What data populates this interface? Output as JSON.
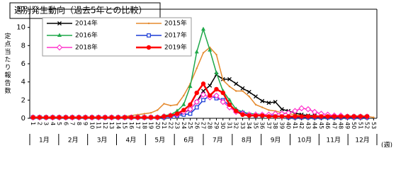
{
  "chart_data": {
    "type": "line",
    "title": "週別発生動向（過去5年との比較）",
    "y_label": "定点当たり報告数",
    "x_label": "(週)",
    "x": [
      1,
      2,
      3,
      4,
      5,
      6,
      7,
      8,
      9,
      10,
      11,
      12,
      13,
      14,
      15,
      16,
      17,
      18,
      19,
      20,
      21,
      22,
      23,
      24,
      25,
      26,
      27,
      28,
      29,
      30,
      31,
      32,
      33,
      34,
      35,
      36,
      37,
      38,
      39,
      40,
      41,
      42,
      43,
      44,
      45,
      46,
      47,
      48,
      49,
      50,
      51,
      52,
      53
    ],
    "xlim": [
      0.5,
      53.5
    ],
    "months": [
      "1月",
      "2月",
      "3月",
      "4月",
      "5月",
      "6月",
      "7月",
      "8月",
      "9月",
      "10月",
      "11月",
      "12月"
    ],
    "ylim": [
      0,
      12
    ],
    "yticks": [
      0,
      2,
      4,
      6,
      8,
      10,
      12
    ],
    "grid": false,
    "series": [
      {
        "name": "2014年",
        "color": "#000000",
        "marker": "cross",
        "values": [
          0.1,
          0.1,
          0.1,
          0.1,
          0.1,
          0.1,
          0.1,
          0.1,
          0.1,
          0.1,
          0.1,
          0.1,
          0.1,
          0.1,
          0.1,
          0.1,
          0.1,
          0.1,
          0.1,
          0.1,
          0.2,
          0.3,
          0.4,
          0.6,
          1.0,
          1.8,
          3.0,
          3.6,
          4.8,
          4.3,
          4.3,
          3.8,
          3.3,
          2.9,
          2.4,
          1.9,
          1.7,
          1.8,
          1.0,
          0.8,
          0.6,
          0.4,
          0.3,
          0.3,
          0.2,
          0.2,
          0.2,
          0.2,
          0.2,
          0.2,
          0.2,
          0.2,
          null
        ]
      },
      {
        "name": "2015年",
        "color": "#e58a2e",
        "marker": "dot",
        "values": [
          0.1,
          0.1,
          0.1,
          0.1,
          0.1,
          0.1,
          0.1,
          0.1,
          0.1,
          0.1,
          0.1,
          0.1,
          0.1,
          0.1,
          0.2,
          0.3,
          0.4,
          0.5,
          0.6,
          0.9,
          1.6,
          1.4,
          1.5,
          2.5,
          3.8,
          5.5,
          7.2,
          7.8,
          7.0,
          4.2,
          3.5,
          3.0,
          3.0,
          2.4,
          1.5,
          1.2,
          0.9,
          0.8,
          0.6,
          0.5,
          0.4,
          0.3,
          0.2,
          0.2,
          0.2,
          0.2,
          0.2,
          0.2,
          0.2,
          0.2,
          0.2,
          0.2,
          0.1
        ]
      },
      {
        "name": "2016年",
        "color": "#1fa84a",
        "marker": "triangle",
        "values": [
          0.1,
          0.1,
          0.1,
          0.1,
          0.1,
          0.1,
          0.1,
          0.1,
          0.1,
          0.1,
          0.1,
          0.1,
          0.1,
          0.1,
          0.1,
          0.1,
          0.1,
          0.1,
          0.1,
          0.1,
          0.3,
          0.4,
          0.8,
          1.5,
          3.5,
          7.3,
          9.8,
          7.5,
          5.0,
          3.0,
          2.0,
          1.0,
          0.7,
          0.5,
          0.5,
          0.4,
          0.3,
          0.2,
          0.2,
          0.2,
          0.2,
          0.2,
          0.2,
          0.2,
          0.2,
          0.2,
          0.2,
          0.2,
          0.2,
          0.2,
          0.2,
          0.2,
          null
        ]
      },
      {
        "name": "2017年",
        "color": "#1a3bd6",
        "marker": "square",
        "values": [
          0.1,
          0.1,
          0.1,
          0.1,
          0.1,
          0.1,
          0.1,
          0.1,
          0.1,
          0.1,
          0.1,
          0.1,
          0.1,
          0.1,
          0.1,
          0.1,
          0.1,
          0.1,
          0.1,
          0.1,
          0.1,
          0.2,
          0.3,
          0.4,
          0.5,
          1.2,
          2.0,
          2.5,
          2.2,
          2.0,
          1.4,
          0.8,
          0.6,
          0.4,
          0.3,
          0.3,
          0.3,
          0.3,
          0.2,
          0.1,
          0.1,
          0.1,
          0.1,
          0.1,
          0.1,
          0.1,
          0.1,
          0.1,
          0.1,
          0.1,
          0.1,
          0.1,
          null
        ]
      },
      {
        "name": "2018年",
        "color": "#ff33cc",
        "marker": "diamond",
        "values": [
          0.1,
          0.1,
          0.1,
          0.1,
          0.1,
          0.1,
          0.1,
          0.1,
          0.1,
          0.1,
          0.1,
          0.1,
          0.1,
          0.1,
          0.1,
          0.1,
          0.1,
          0.1,
          0.1,
          0.1,
          0.2,
          0.3,
          0.4,
          0.7,
          1.0,
          1.8,
          2.6,
          2.3,
          2.5,
          1.8,
          1.2,
          0.7,
          0.5,
          0.4,
          0.4,
          0.4,
          0.4,
          0.5,
          0.5,
          0.6,
          0.8,
          1.1,
          1.0,
          0.7,
          0.5,
          0.4,
          0.3,
          0.3,
          0.2,
          0.2,
          0.2,
          0.2,
          null
        ]
      },
      {
        "name": "2019年",
        "color": "#ff0000",
        "marker": "circle",
        "values": [
          0.1,
          0.1,
          0.1,
          0.1,
          0.1,
          0.1,
          0.1,
          0.1,
          0.1,
          0.1,
          0.1,
          0.1,
          0.1,
          0.1,
          0.1,
          0.1,
          0.1,
          0.1,
          0.1,
          0.1,
          0.2,
          0.3,
          0.5,
          0.9,
          1.5,
          2.8,
          3.8,
          2.5,
          3.2,
          2.8,
          1.5,
          0.8,
          0.4,
          0.3,
          0.3,
          0.3,
          0.2,
          0.2,
          0.2,
          0.2,
          0.2,
          0.2,
          0.2,
          0.2,
          0.2,
          0.2,
          0.2,
          0.2,
          0.2,
          0.2,
          0.2,
          0.2,
          null
        ]
      }
    ]
  }
}
